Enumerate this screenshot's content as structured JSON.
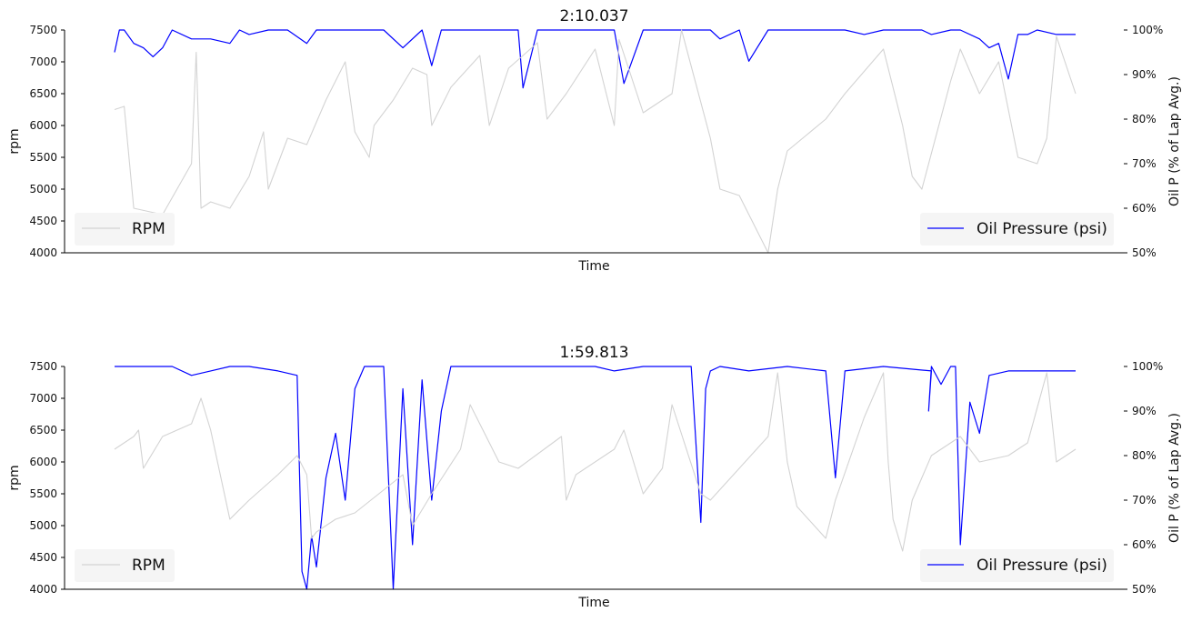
{
  "chart_data": [
    {
      "type": "line",
      "title": "2:10.037",
      "xlabel": "Time",
      "ylabel": "rpm",
      "y2label": "Oil P (% of Lap Avg.)",
      "ylim": [
        4000,
        7500
      ],
      "y2lim": [
        50,
        100
      ],
      "yticks": [
        "4000",
        "4500",
        "5000",
        "5500",
        "6000",
        "6500",
        "7000",
        "7500"
      ],
      "y2ticks": [
        "50%",
        "60%",
        "70%",
        "80%",
        "90%",
        "100%"
      ],
      "x_ticks_visible": false,
      "legend_left": "RPM",
      "legend_right": "Oil Pressure (psi)",
      "legend_left_loc": "lower left",
      "legend_right_loc": "lower right",
      "series": [
        {
          "name": "RPM",
          "axis": "left",
          "color": "#d3d3d3",
          "x": [
            0.0,
            0.01,
            0.02,
            0.05,
            0.08,
            0.085,
            0.09,
            0.1,
            0.12,
            0.14,
            0.155,
            0.16,
            0.18,
            0.2,
            0.22,
            0.24,
            0.25,
            0.265,
            0.27,
            0.29,
            0.31,
            0.325,
            0.33,
            0.35,
            0.38,
            0.39,
            0.41,
            0.44,
            0.45,
            0.47,
            0.5,
            0.52,
            0.525,
            0.55,
            0.58,
            0.59,
            0.62,
            0.63,
            0.65,
            0.68,
            0.69,
            0.7,
            0.74,
            0.76,
            0.8,
            0.82,
            0.83,
            0.84,
            0.87,
            0.88,
            0.9,
            0.92,
            0.94,
            0.96,
            0.97,
            0.98,
            1.0
          ],
          "values": [
            6250,
            6300,
            4700,
            4600,
            5400,
            7150,
            4700,
            4800,
            4700,
            5200,
            5900,
            5000,
            5800,
            5700,
            6400,
            7000,
            5900,
            5500,
            6000,
            6400,
            6900,
            6800,
            6000,
            6600,
            7100,
            6000,
            6900,
            7300,
            6100,
            6500,
            7200,
            6000,
            7350,
            6200,
            6500,
            7500,
            5800,
            5000,
            4900,
            4000,
            5000,
            5600,
            6100,
            6500,
            7200,
            6000,
            5200,
            5000,
            6700,
            7200,
            6500,
            7000,
            5500,
            5400,
            5800,
            7400,
            6500
          ]
        },
        {
          "name": "Oil Pressure (psi)",
          "axis": "right",
          "color": "#0000ff",
          "x": [
            0.0,
            0.005,
            0.01,
            0.02,
            0.03,
            0.04,
            0.05,
            0.06,
            0.08,
            0.1,
            0.12,
            0.13,
            0.14,
            0.16,
            0.18,
            0.2,
            0.21,
            0.24,
            0.26,
            0.28,
            0.3,
            0.32,
            0.33,
            0.34,
            0.37,
            0.39,
            0.42,
            0.425,
            0.44,
            0.47,
            0.5,
            0.52,
            0.53,
            0.55,
            0.58,
            0.6,
            0.62,
            0.63,
            0.65,
            0.66,
            0.68,
            0.69,
            0.7,
            0.71,
            0.74,
            0.76,
            0.78,
            0.8,
            0.82,
            0.84,
            0.85,
            0.87,
            0.88,
            0.9,
            0.91,
            0.92,
            0.93,
            0.94,
            0.95,
            0.96,
            0.98,
            1.0
          ],
          "values": [
            95,
            100,
            100,
            97,
            96,
            94,
            96,
            100,
            98,
            98,
            97,
            100,
            99,
            100,
            100,
            97,
            100,
            100,
            100,
            100,
            96,
            100,
            92,
            100,
            100,
            100,
            100,
            87,
            100,
            100,
            100,
            100,
            88,
            100,
            100,
            100,
            100,
            98,
            100,
            93,
            100,
            100,
            100,
            100,
            100,
            100,
            99,
            100,
            100,
            100,
            99,
            100,
            100,
            98,
            96,
            97,
            89,
            99,
            99,
            100,
            99,
            99
          ]
        }
      ]
    },
    {
      "type": "line",
      "title": "1:59.813",
      "xlabel": "Time",
      "ylabel": "rpm",
      "y2label": "Oil P (% of Lap Avg.)",
      "ylim": [
        4000,
        7500
      ],
      "y2lim": [
        50,
        100
      ],
      "yticks": [
        "4000",
        "4500",
        "5000",
        "5500",
        "6000",
        "6500",
        "7000",
        "7500"
      ],
      "y2ticks": [
        "50%",
        "60%",
        "70%",
        "80%",
        "90%",
        "100%"
      ],
      "x_ticks_visible": false,
      "legend_left": "RPM",
      "legend_right": "Oil Pressure (psi)",
      "legend_left_loc": "lower left",
      "legend_right_loc": "lower right",
      "series": [
        {
          "name": "RPM",
          "axis": "left",
          "color": "#d3d3d3",
          "x": [
            0.0,
            0.02,
            0.025,
            0.03,
            0.05,
            0.08,
            0.09,
            0.1,
            0.12,
            0.14,
            0.17,
            0.19,
            0.2,
            0.205,
            0.21,
            0.23,
            0.25,
            0.3,
            0.31,
            0.33,
            0.36,
            0.37,
            0.4,
            0.42,
            0.465,
            0.47,
            0.48,
            0.52,
            0.53,
            0.55,
            0.57,
            0.58,
            0.61,
            0.62,
            0.65,
            0.68,
            0.69,
            0.7,
            0.71,
            0.74,
            0.75,
            0.78,
            0.8,
            0.805,
            0.81,
            0.82,
            0.83,
            0.85,
            0.88,
            0.9,
            0.93,
            0.95,
            0.97,
            0.98,
            1.0
          ],
          "values": [
            6200,
            6400,
            6500,
            5900,
            6400,
            6600,
            7000,
            6500,
            5100,
            5400,
            5800,
            6100,
            5800,
            4800,
            4900,
            5100,
            5200,
            5800,
            5000,
            5500,
            6200,
            6900,
            6000,
            5900,
            6400,
            5400,
            5800,
            6200,
            6500,
            5500,
            5900,
            6900,
            5500,
            5400,
            5900,
            6400,
            7400,
            6000,
            5300,
            4800,
            5400,
            6700,
            7400,
            6000,
            5100,
            4600,
            5400,
            6100,
            6400,
            6000,
            6100,
            6300,
            7400,
            6000,
            6200
          ]
        },
        {
          "name": "Oil Pressure (psi)",
          "axis": "right",
          "color": "#0000ff",
          "x": [
            0.0,
            0.02,
            0.06,
            0.08,
            0.1,
            0.12,
            0.14,
            0.17,
            0.19,
            0.195,
            0.2,
            0.205,
            0.21,
            0.215,
            0.22,
            0.23,
            0.24,
            0.25,
            0.26,
            0.265,
            0.27,
            0.28,
            0.29,
            0.3,
            0.31,
            0.32,
            0.33,
            0.34,
            0.35,
            0.36,
            0.38,
            0.4,
            0.42,
            0.44,
            0.46,
            0.48,
            0.5,
            0.52,
            0.55,
            0.58,
            0.6,
            0.61,
            0.615,
            0.62,
            0.63,
            0.66,
            0.7,
            0.74,
            0.75,
            0.76,
            0.8,
            0.85,
            0.847,
            0.85,
            0.86,
            0.87,
            0.875,
            0.88,
            0.89,
            0.9,
            0.91,
            0.93,
            0.95,
            0.97,
            1.0
          ],
          "values": [
            100,
            100,
            100,
            98,
            99,
            100,
            100,
            99,
            98,
            54,
            50,
            62,
            55,
            65,
            75,
            85,
            70,
            95,
            100,
            100,
            100,
            100,
            50,
            95,
            60,
            97,
            70,
            90,
            100,
            100,
            100,
            100,
            100,
            100,
            100,
            100,
            100,
            99,
            100,
            100,
            100,
            65,
            95,
            99,
            100,
            99,
            100,
            99,
            75,
            99,
            100,
            99,
            90,
            100,
            96,
            100,
            100,
            60,
            92,
            85,
            98,
            99,
            99,
            99,
            99
          ]
        }
      ]
    }
  ]
}
